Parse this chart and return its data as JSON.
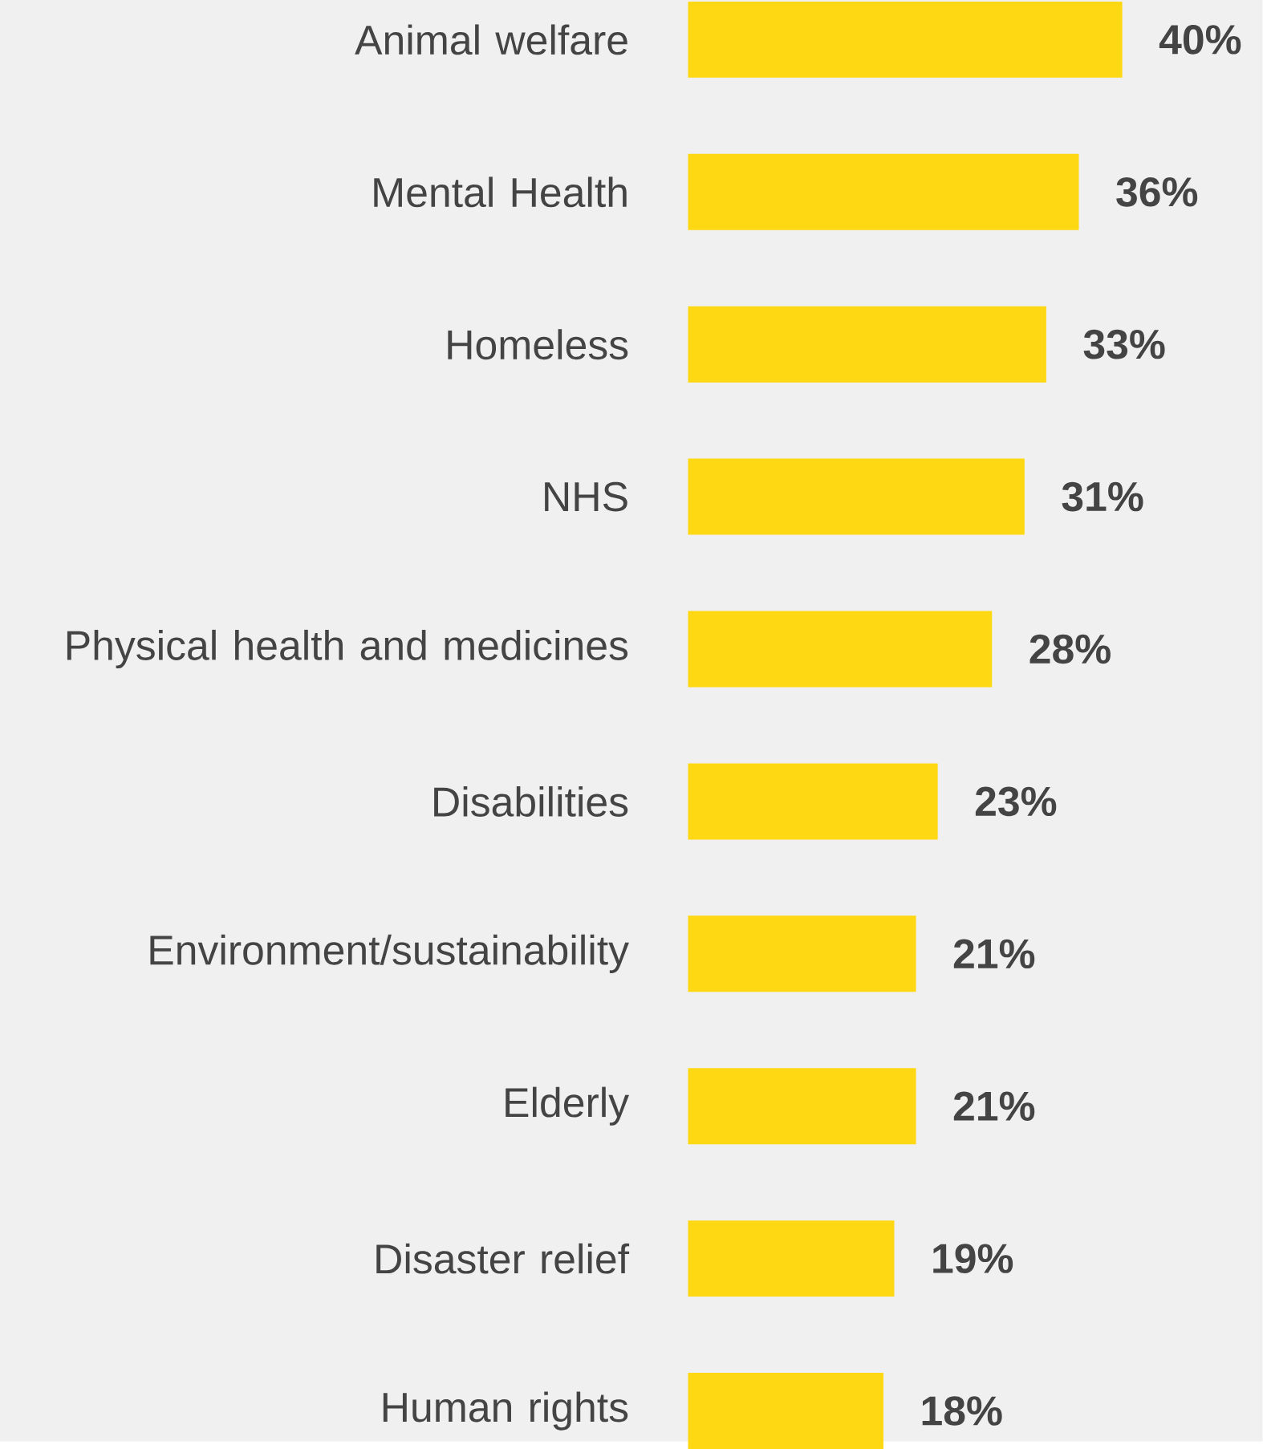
{
  "chart_data": {
    "type": "bar",
    "orientation": "horizontal",
    "categories": [
      "Animal welfare",
      "Mental Health",
      "Homeless",
      "NHS",
      "Physical health and medicines",
      "Disabilities",
      "Environment/sustainability",
      "Elderly",
      "Disaster relief",
      "Human rights"
    ],
    "values": [
      40,
      36,
      33,
      31,
      28,
      23,
      21,
      21,
      19,
      18
    ],
    "value_labels": [
      "40%",
      "36%",
      "33%",
      "31%",
      "28%",
      "23%",
      "21%",
      "21%",
      "19%",
      "18%"
    ],
    "color": "#ffd814"
  }
}
